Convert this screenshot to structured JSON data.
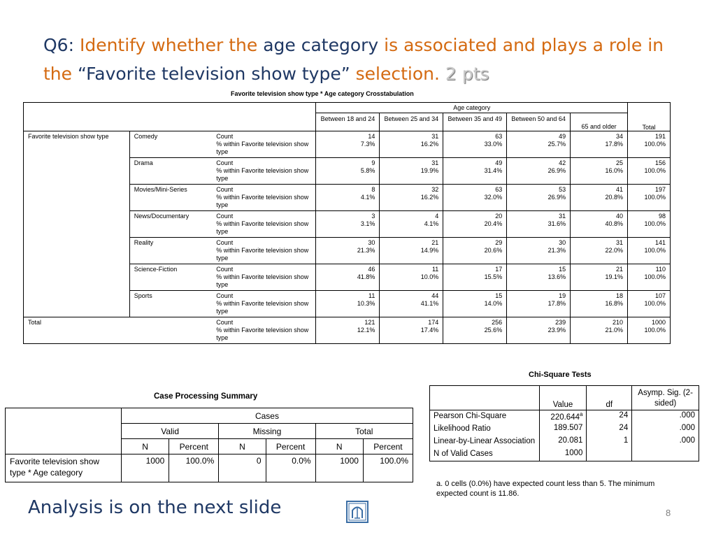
{
  "slide": {
    "title_parts": {
      "q": "Q6:",
      "p1": "Identify whether the",
      "p2": "age category",
      "p3": "is associated and plays a role in the",
      "p4": "“Favorite television show type”",
      "p5": "selection.",
      "pts": "2 pts"
    },
    "analysis_text": "Analysis is on the next slide",
    "page_number": "8",
    "logo_icon": "university-logo-icon"
  },
  "crosstab": {
    "title": "Favorite television show type * Age category Crosstabulation",
    "group_header": "Age category",
    "row_var": "Favorite television show type",
    "columns": [
      "Between 18 and 24",
      "Between 25 and 34",
      "Between 35 and 49",
      "Between 50 and 64",
      "65 and older",
      "Total"
    ],
    "count_label": "Count",
    "pct_label": "% within Favorite television show type",
    "rows": [
      {
        "cat": "Comedy",
        "counts": [
          "14",
          "31",
          "63",
          "49",
          "34",
          "191"
        ],
        "pcts": [
          "7.3%",
          "16.2%",
          "33.0%",
          "25.7%",
          "17.8%",
          "100.0%"
        ]
      },
      {
        "cat": "Drama",
        "counts": [
          "9",
          "31",
          "49",
          "42",
          "25",
          "156"
        ],
        "pcts": [
          "5.8%",
          "19.9%",
          "31.4%",
          "26.9%",
          "16.0%",
          "100.0%"
        ]
      },
      {
        "cat": "Movies/Mini-Series",
        "counts": [
          "8",
          "32",
          "63",
          "53",
          "41",
          "197"
        ],
        "pcts": [
          "4.1%",
          "16.2%",
          "32.0%",
          "26.9%",
          "20.8%",
          "100.0%"
        ]
      },
      {
        "cat": "News/Documentary",
        "counts": [
          "3",
          "4",
          "20",
          "31",
          "40",
          "98"
        ],
        "pcts": [
          "3.1%",
          "4.1%",
          "20.4%",
          "31.6%",
          "40.8%",
          "100.0%"
        ]
      },
      {
        "cat": "Reality",
        "counts": [
          "30",
          "21",
          "29",
          "30",
          "31",
          "141"
        ],
        "pcts": [
          "21.3%",
          "14.9%",
          "20.6%",
          "21.3%",
          "22.0%",
          "100.0%"
        ]
      },
      {
        "cat": "Science-Fiction",
        "counts": [
          "46",
          "11",
          "17",
          "15",
          "21",
          "110"
        ],
        "pcts": [
          "41.8%",
          "10.0%",
          "15.5%",
          "13.6%",
          "19.1%",
          "100.0%"
        ]
      },
      {
        "cat": "Sports",
        "counts": [
          "11",
          "44",
          "15",
          "19",
          "18",
          "107"
        ],
        "pcts": [
          "10.3%",
          "41.1%",
          "14.0%",
          "17.8%",
          "16.8%",
          "100.0%"
        ]
      }
    ],
    "total": {
      "label": "Total",
      "counts": [
        "121",
        "174",
        "256",
        "239",
        "210",
        "1000"
      ],
      "pcts": [
        "12.1%",
        "17.4%",
        "25.6%",
        "23.9%",
        "21.0%",
        "100.0%"
      ]
    }
  },
  "case_summary": {
    "title": "Case Processing Summary",
    "cases": "Cases",
    "valid": "Valid",
    "missing": "Missing",
    "total": "Total",
    "n": "N",
    "percent": "Percent",
    "row_label": "Favorite television show type * Age category",
    "values": [
      "1000",
      "100.0%",
      "0",
      "0.0%",
      "1000",
      "100.0%"
    ]
  },
  "chi_square": {
    "title": "Chi-Square Tests",
    "headers": {
      "value": "Value",
      "df": "df",
      "sig": "Asymp. Sig. (2-sided)"
    },
    "rows": [
      {
        "label": "Pearson Chi-Square",
        "value": "220.644",
        "sup": "a",
        "df": "24",
        "sig": ".000"
      },
      {
        "label": "Likelihood Ratio",
        "value": "189.507",
        "sup": "",
        "df": "24",
        "sig": ".000"
      },
      {
        "label": "Linear-by-Linear Association",
        "value": "20.081",
        "sup": "",
        "df": "1",
        "sig": ".000"
      },
      {
        "label": "N of Valid Cases",
        "value": "1000",
        "sup": "",
        "df": "",
        "sig": ""
      }
    ],
    "footnote": "a. 0 cells (0.0%) have expected count less than 5. The minimum expected count is 11.86."
  }
}
